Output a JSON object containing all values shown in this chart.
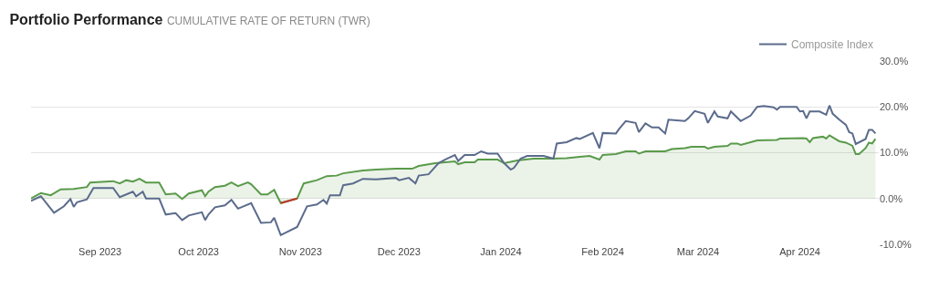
{
  "chart_data": {
    "type": "line",
    "title": "Portfolio Performance",
    "subtitle": "CUMULATIVE RATE OF RETURN (TWR)",
    "xlim": [
      "2023-08-11",
      "2024-04-25"
    ],
    "xticks": [
      {
        "value": "2023-09-01",
        "label": "Sep 2023"
      },
      {
        "value": "2023-10-01",
        "label": "Oct 2023"
      },
      {
        "value": "2023-11-01",
        "label": "Nov 2023"
      },
      {
        "value": "2023-12-01",
        "label": "Dec 2023"
      },
      {
        "value": "2024-01-01",
        "label": "Jan 2024"
      },
      {
        "value": "2024-02-01",
        "label": "Feb 2024"
      },
      {
        "value": "2024-03-01",
        "label": "Mar 2024"
      },
      {
        "value": "2024-04-01",
        "label": "Apr 2024"
      }
    ],
    "ylim": [
      -10,
      30
    ],
    "yticks": [
      {
        "value": -10,
        "label": "-10.0%"
      },
      {
        "value": 0,
        "label": "0.0%"
      },
      {
        "value": 10,
        "label": "10.0%"
      },
      {
        "value": 20,
        "label": "20.0%"
      },
      {
        "value": 30,
        "label": "30.0%"
      }
    ],
    "grid": "y",
    "legend": "top right",
    "series": [
      {
        "type": "area",
        "color": "#5a9a4a",
        "x": [
          "2023-08-11",
          "2023-08-14",
          "2023-08-17",
          "2023-08-20",
          "2023-08-24",
          "2023-08-28",
          "2023-08-29",
          "2023-09-05",
          "2023-09-07",
          "2023-09-09",
          "2023-09-11",
          "2023-09-13",
          "2023-09-15",
          "2023-09-19",
          "2023-09-21",
          "2023-09-24",
          "2023-09-26",
          "2023-09-28",
          "2023-10-02",
          "2023-10-03",
          "2023-10-04",
          "2023-10-06",
          "2023-10-09",
          "2023-10-11",
          "2023-10-13",
          "2023-10-16",
          "2023-10-17",
          "2023-10-20",
          "2023-10-22",
          "2023-10-24",
          "2023-10-26",
          "2023-10-31",
          "2023-11-02",
          "2023-11-06",
          "2023-11-09",
          "2023-11-12",
          "2023-11-14",
          "2023-11-20",
          "2023-11-24",
          "2023-11-30",
          "2023-12-05",
          "2023-12-07",
          "2023-12-12",
          "2023-12-18",
          "2023-12-19",
          "2023-12-21",
          "2023-12-24",
          "2023-12-25",
          "2023-12-31",
          "2024-01-02",
          "2024-01-06",
          "2024-01-11",
          "2024-01-16",
          "2024-01-21",
          "2024-01-25",
          "2024-01-28",
          "2024-01-31",
          "2024-02-01",
          "2024-02-05",
          "2024-02-08",
          "2024-02-11",
          "2024-02-12",
          "2024-02-14",
          "2024-02-20",
          "2024-02-22",
          "2024-02-26",
          "2024-02-28",
          "2024-03-03",
          "2024-03-04",
          "2024-03-06",
          "2024-03-10",
          "2024-03-11",
          "2024-03-13",
          "2024-03-14",
          "2024-03-19",
          "2024-03-25",
          "2024-03-26",
          "2024-04-02",
          "2024-04-03",
          "2024-04-04",
          "2024-04-05",
          "2024-04-08",
          "2024-04-09",
          "2024-04-10",
          "2024-04-13",
          "2024-04-15",
          "2024-04-17",
          "2024-04-18",
          "2024-04-19",
          "2024-04-21",
          "2024-04-22",
          "2024-04-23",
          "2024-04-24"
        ],
        "values": [
          0.0,
          1.2,
          0.7,
          2.0,
          2.1,
          2.5,
          3.5,
          3.8,
          3.3,
          4.0,
          3.7,
          4.3,
          3.5,
          3.5,
          0.9,
          1.1,
          -0.1,
          1.1,
          1.8,
          0.5,
          1.5,
          2.5,
          2.8,
          3.5,
          2.7,
          3.5,
          3.1,
          0.9,
          0.9,
          1.9,
          -1.0,
          0.0,
          3.3,
          4.0,
          4.9,
          5.0,
          5.5,
          6.1,
          6.3,
          6.5,
          6.5,
          7.1,
          7.7,
          8.1,
          7.5,
          7.9,
          7.9,
          8.5,
          8.5,
          7.7,
          8.3,
          8.7,
          8.7,
          8.8,
          9.1,
          9.3,
          8.5,
          9.5,
          9.7,
          10.3,
          10.3,
          9.8,
          10.3,
          10.3,
          10.8,
          11.0,
          11.3,
          11.3,
          10.9,
          11.3,
          11.5,
          12.0,
          12.0,
          11.7,
          12.7,
          12.8,
          13.1,
          13.2,
          13.1,
          12.3,
          13.2,
          13.5,
          13.1,
          13.8,
          12.5,
          12.2,
          11.5,
          9.7,
          9.7,
          11.0,
          12.2,
          12.0,
          13.0
        ]
      },
      {
        "color": "#c0392b",
        "x": [
          "2023-10-26",
          "2023-10-31"
        ],
        "values": [
          -1.0,
          0.0
        ]
      },
      {
        "name": "Composite Index",
        "color": "#5b6b8c",
        "x": [
          "2023-08-11",
          "2023-08-14",
          "2023-08-18",
          "2023-08-21",
          "2023-08-23",
          "2023-08-24",
          "2023-08-25",
          "2023-08-28",
          "2023-08-30",
          "2023-09-05",
          "2023-09-07",
          "2023-09-11",
          "2023-09-12",
          "2023-09-14",
          "2023-09-15",
          "2023-09-19",
          "2023-09-21",
          "2023-09-24",
          "2023-09-26",
          "2023-09-28",
          "2023-10-02",
          "2023-10-03",
          "2023-10-04",
          "2023-10-06",
          "2023-10-09",
          "2023-10-11",
          "2023-10-13",
          "2023-10-17",
          "2023-10-20",
          "2023-10-23",
          "2023-10-24",
          "2023-10-26",
          "2023-10-31",
          "2023-11-03",
          "2023-11-06",
          "2023-11-08",
          "2023-11-09",
          "2023-11-10",
          "2023-11-13",
          "2023-11-14",
          "2023-11-17",
          "2023-11-20",
          "2023-11-24",
          "2023-11-30",
          "2023-12-01",
          "2023-12-04",
          "2023-12-06",
          "2023-12-07",
          "2023-12-10",
          "2023-12-13",
          "2023-12-15",
          "2023-12-18",
          "2023-12-19",
          "2023-12-21",
          "2023-12-24",
          "2023-12-26",
          "2023-12-28",
          "2023-12-31",
          "2024-01-02",
          "2024-01-04",
          "2024-01-05",
          "2024-01-07",
          "2024-01-09",
          "2024-01-14",
          "2024-01-17",
          "2024-01-18",
          "2024-01-21",
          "2024-01-24",
          "2024-01-25",
          "2024-01-29",
          "2024-01-31",
          "2024-02-01",
          "2024-02-05",
          "2024-02-06",
          "2024-02-08",
          "2024-02-11",
          "2024-02-12",
          "2024-02-14",
          "2024-02-16",
          "2024-02-18",
          "2024-02-20",
          "2024-02-21",
          "2024-02-26",
          "2024-02-27",
          "2024-02-29",
          "2024-03-03",
          "2024-03-04",
          "2024-03-06",
          "2024-03-07",
          "2024-03-10",
          "2024-03-11",
          "2024-03-14",
          "2024-03-17",
          "2024-03-19",
          "2024-03-21",
          "2024-03-24",
          "2024-03-25",
          "2024-03-26",
          "2024-03-31",
          "2024-04-01",
          "2024-04-02",
          "2024-04-03",
          "2024-04-04",
          "2024-04-07",
          "2024-04-09",
          "2024-04-10",
          "2024-04-11",
          "2024-04-13",
          "2024-04-15",
          "2024-04-16",
          "2024-04-17",
          "2024-04-18",
          "2024-04-21",
          "2024-04-22",
          "2024-04-23",
          "2024-04-24"
        ],
        "values": [
          -0.5,
          0.5,
          -3.1,
          -1.7,
          -0.1,
          -1.8,
          -0.8,
          -0.2,
          2.3,
          2.3,
          0.3,
          1.5,
          0.5,
          1.5,
          0.0,
          0.0,
          -3.5,
          -3.2,
          -4.7,
          -3.7,
          -3.0,
          -4.7,
          -3.5,
          -1.9,
          -1.5,
          -0.3,
          -2.2,
          -1.0,
          -5.3,
          -5.2,
          -4.2,
          -8.0,
          -6.2,
          -1.7,
          -1.3,
          -0.3,
          -1.1,
          0.7,
          0.7,
          2.9,
          3.3,
          4.3,
          4.2,
          4.5,
          4.0,
          4.5,
          3.3,
          5.0,
          5.3,
          7.7,
          8.5,
          9.5,
          8.2,
          9.5,
          9.5,
          10.3,
          9.8,
          9.8,
          7.7,
          6.3,
          6.7,
          8.7,
          9.3,
          9.3,
          8.7,
          12.0,
          12.3,
          13.2,
          13.0,
          14.3,
          11.0,
          14.3,
          14.2,
          15.2,
          16.9,
          16.5,
          14.5,
          16.4,
          15.5,
          15.5,
          14.2,
          17.2,
          16.9,
          17.5,
          19.1,
          18.5,
          16.5,
          19.0,
          17.9,
          17.5,
          19.0,
          16.9,
          18.1,
          20.0,
          20.2,
          19.9,
          19.4,
          20.0,
          20.0,
          19.0,
          19.1,
          17.5,
          19.0,
          19.0,
          18.3,
          20.3,
          18.5,
          17.2,
          16.1,
          14.5,
          14.2,
          11.9,
          13.0,
          15.0,
          15.0,
          14.2
        ]
      }
    ]
  }
}
